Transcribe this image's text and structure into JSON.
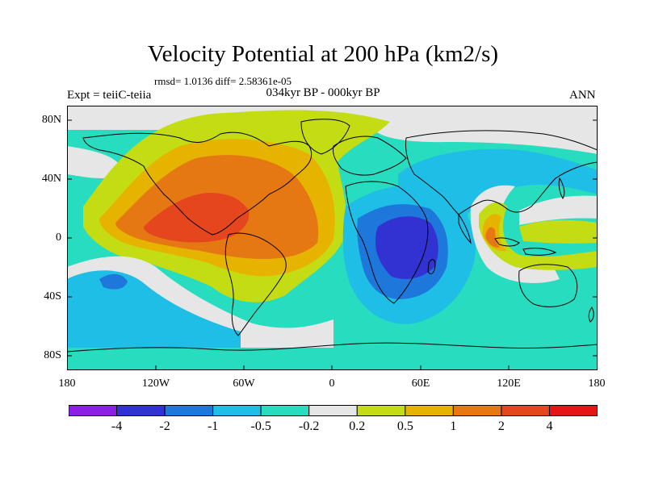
{
  "title": "Velocity Potential at 200 hPa (km2/s)",
  "stats": "rmsd= 1.0136 diff= 2.58361e-05",
  "subtitle": "034kyr BP - 000kyr BP",
  "experiment": "Expt = teiiC-teiia",
  "season": "ANN",
  "y_axis_labels": [
    "80N",
    "40N",
    "0",
    "40S",
    "80S"
  ],
  "x_axis_labels": [
    "180",
    "120W",
    "60W",
    "0",
    "60E",
    "120E",
    "180"
  ],
  "colorbar": {
    "labels": [
      "-4",
      "-2",
      "-1",
      "-0.5",
      "-0.2",
      "0.2",
      "0.5",
      "1",
      "2",
      "4"
    ],
    "colors": [
      "#8c1ee6",
      "#3232d2",
      "#1e78dc",
      "#1ebee6",
      "#28dcc0",
      "#e6e6e6",
      "#c3dc14",
      "#e6b400",
      "#e67814",
      "#e6461e",
      "#e61414"
    ]
  },
  "map_colors": {
    "neutral": "#e6e6e6",
    "ocean_base": "#28dcc0"
  }
}
